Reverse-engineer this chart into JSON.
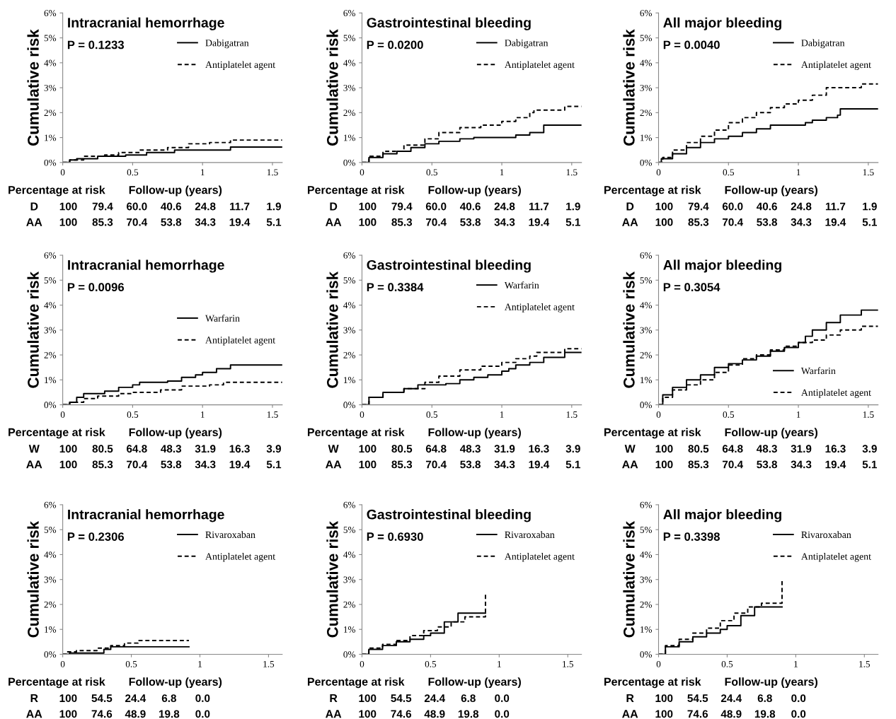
{
  "chart_data": [
    {
      "type": "step",
      "title": "Intracranial hemorrhage",
      "ylabel": "Cumulative risk",
      "xlim": [
        0,
        1.57
      ],
      "ylim": [
        0,
        6
      ],
      "xticks": [
        0,
        0.5,
        1,
        1.5
      ],
      "yticks": [
        {
          "value": 0,
          "label": "0%"
        },
        {
          "value": 1,
          "label": "1%"
        },
        {
          "value": 2,
          "label": "2%"
        },
        {
          "value": 3,
          "label": "3%"
        },
        {
          "value": 4,
          "label": "4%"
        },
        {
          "value": 5,
          "label": "5%"
        },
        {
          "value": 6,
          "label": "6%"
        }
      ],
      "legend": "top right",
      "grid": false,
      "series": [
        {
          "name": "Dabigatran",
          "color": "#000000",
          "line_style": "solid",
          "x": [
            0,
            0.05,
            0.1,
            0.25,
            0.45,
            0.6,
            0.8,
            1.2,
            1.57
          ],
          "values": [
            0,
            0.1,
            0.15,
            0.25,
            0.3,
            0.4,
            0.5,
            0.62,
            0.62
          ]
        },
        {
          "name": "Antiplatelet agent",
          "color": "#000000",
          "line_style": "dashed",
          "x": [
            0,
            0.05,
            0.15,
            0.3,
            0.4,
            0.55,
            0.75,
            0.9,
            1.05,
            1.2,
            1.57
          ],
          "values": [
            0,
            0.1,
            0.25,
            0.3,
            0.4,
            0.5,
            0.6,
            0.75,
            0.8,
            0.9,
            0.9
          ]
        }
      ],
      "annotations": [
        "P = 0.1233",
        "Percentage at risk",
        "Follow-up (years)",
        "D",
        "100",
        "79.4",
        "60.0",
        "40.6",
        "24.8",
        "11.7",
        "1.9",
        "AA",
        "100",
        "85.3",
        "70.4",
        "53.8",
        "34.3",
        "19.4",
        "5.1"
      ]
    },
    {
      "type": "step",
      "title": "Gastrointestinal bleeding",
      "ylabel": "Cumulative risk",
      "xlim": [
        0,
        1.57
      ],
      "ylim": [
        0,
        6
      ],
      "xticks": [
        0,
        0.5,
        1,
        1.5
      ],
      "yticks": [
        {
          "value": 0,
          "label": "0%"
        },
        {
          "value": 1,
          "label": "1%"
        },
        {
          "value": 2,
          "label": "2%"
        },
        {
          "value": 3,
          "label": "3%"
        },
        {
          "value": 4,
          "label": "4%"
        },
        {
          "value": 5,
          "label": "5%"
        },
        {
          "value": 6,
          "label": "6%"
        }
      ],
      "legend": "top right",
      "grid": false,
      "series": [
        {
          "name": "Dabigatran",
          "color": "#000000",
          "line_style": "solid",
          "x": [
            0,
            0.05,
            0.15,
            0.25,
            0.35,
            0.45,
            0.55,
            0.7,
            0.8,
            1.1,
            1.2,
            1.3,
            1.57
          ],
          "values": [
            0,
            0.2,
            0.35,
            0.45,
            0.6,
            0.75,
            0.85,
            0.95,
            1.0,
            1.1,
            1.2,
            1.5,
            1.5
          ]
        },
        {
          "name": "Antiplatelet agent",
          "color": "#000000",
          "line_style": "dashed",
          "x": [
            0,
            0.05,
            0.15,
            0.3,
            0.45,
            0.55,
            0.7,
            0.85,
            1.0,
            1.1,
            1.2,
            1.23,
            1.45,
            1.57
          ],
          "values": [
            0,
            0.25,
            0.45,
            0.7,
            0.95,
            1.2,
            1.4,
            1.5,
            1.65,
            1.8,
            2.0,
            2.1,
            2.25,
            2.25
          ]
        }
      ],
      "annotations": [
        "P = 0.0200",
        "Percentage at risk",
        "Follow-up (years)",
        "D",
        "100",
        "79.4",
        "60.0",
        "40.6",
        "24.8",
        "11.7",
        "1.9",
        "AA",
        "100",
        "85.3",
        "70.4",
        "53.8",
        "34.3",
        "19.4",
        "5.1"
      ]
    },
    {
      "type": "step",
      "title": "All major bleeding",
      "ylabel": "Cumulative risk",
      "xlim": [
        0,
        1.57
      ],
      "ylim": [
        0,
        6
      ],
      "xticks": [
        0,
        0.5,
        1,
        1.5
      ],
      "yticks": [
        {
          "value": 0,
          "label": "0%"
        },
        {
          "value": 1,
          "label": "1%"
        },
        {
          "value": 2,
          "label": "2%"
        },
        {
          "value": 3,
          "label": "3%"
        },
        {
          "value": 4,
          "label": "4%"
        },
        {
          "value": 5,
          "label": "5%"
        },
        {
          "value": 6,
          "label": "6%"
        }
      ],
      "legend": "top right",
      "grid": false,
      "series": [
        {
          "name": "Dabigatran",
          "color": "#000000",
          "line_style": "solid",
          "x": [
            0,
            0.02,
            0.1,
            0.2,
            0.3,
            0.4,
            0.5,
            0.6,
            0.7,
            0.8,
            1.05,
            1.1,
            1.2,
            1.28,
            1.3,
            1.57
          ],
          "values": [
            0,
            0.15,
            0.35,
            0.6,
            0.8,
            0.95,
            1.05,
            1.2,
            1.35,
            1.5,
            1.6,
            1.7,
            1.8,
            1.9,
            2.15,
            2.15
          ]
        },
        {
          "name": "Antiplatelet agent",
          "color": "#000000",
          "line_style": "dashed",
          "x": [
            0,
            0.03,
            0.1,
            0.2,
            0.3,
            0.4,
            0.5,
            0.6,
            0.7,
            0.8,
            0.9,
            1.0,
            1.1,
            1.2,
            1.45,
            1.57
          ],
          "values": [
            0,
            0.2,
            0.5,
            0.8,
            1.05,
            1.3,
            1.6,
            1.8,
            2.0,
            2.2,
            2.35,
            2.5,
            2.7,
            3.0,
            3.15,
            3.15
          ]
        }
      ],
      "annotations": [
        "P = 0.0040",
        "Percentage at risk",
        "Follow-up (years)",
        "D",
        "100",
        "79.4",
        "60.0",
        "40.6",
        "24.8",
        "11.7",
        "1.9",
        "AA",
        "100",
        "85.3",
        "70.4",
        "53.8",
        "34.3",
        "19.4",
        "5.1"
      ]
    },
    {
      "type": "step",
      "title": "Intracranial hemorrhage",
      "ylabel": "Cumulative risk",
      "xlim": [
        0,
        1.57
      ],
      "ylim": [
        0,
        6
      ],
      "xticks": [
        0,
        0.5,
        1,
        1.5
      ],
      "yticks": [
        {
          "value": 0,
          "label": "0%"
        },
        {
          "value": 1,
          "label": "1%"
        },
        {
          "value": 2,
          "label": "2%"
        },
        {
          "value": 3,
          "label": "3%"
        },
        {
          "value": 4,
          "label": "4%"
        },
        {
          "value": 5,
          "label": "5%"
        },
        {
          "value": 6,
          "label": "6%"
        }
      ],
      "legend": "right",
      "grid": false,
      "series": [
        {
          "name": "Warfarin",
          "color": "#000000",
          "line_style": "solid",
          "x": [
            0,
            0.05,
            0.1,
            0.15,
            0.3,
            0.4,
            0.5,
            0.55,
            0.75,
            0.85,
            0.95,
            1.0,
            1.1,
            1.2,
            1.57
          ],
          "values": [
            0,
            0.1,
            0.3,
            0.45,
            0.55,
            0.7,
            0.8,
            0.9,
            0.95,
            1.1,
            1.2,
            1.3,
            1.45,
            1.6,
            1.6
          ]
        },
        {
          "name": "Antiplatelet agent",
          "color": "#000000",
          "line_style": "dashed",
          "x": [
            0,
            0.05,
            0.15,
            0.25,
            0.4,
            0.5,
            0.7,
            0.85,
            1.05,
            1.15,
            1.57
          ],
          "values": [
            0,
            0.1,
            0.25,
            0.35,
            0.45,
            0.5,
            0.6,
            0.75,
            0.8,
            0.9,
            0.9
          ]
        }
      ],
      "annotations": [
        "P = 0.0096",
        "Percentage at risk",
        "Follow-up (years)",
        "W",
        "100",
        "80.5",
        "64.8",
        "48.3",
        "31.9",
        "16.3",
        "3.9",
        "AA",
        "100",
        "85.3",
        "70.4",
        "53.8",
        "34.3",
        "19.4",
        "5.1"
      ]
    },
    {
      "type": "step",
      "title": "Gastrointestinal bleeding",
      "ylabel": "Cumulative risk",
      "xlim": [
        0,
        1.57
      ],
      "ylim": [
        0,
        6
      ],
      "xticks": [
        0,
        0.5,
        1,
        1.5
      ],
      "yticks": [
        {
          "value": 0,
          "label": "0%"
        },
        {
          "value": 1,
          "label": "1%"
        },
        {
          "value": 2,
          "label": "2%"
        },
        {
          "value": 3,
          "label": "3%"
        },
        {
          "value": 4,
          "label": "4%"
        },
        {
          "value": 5,
          "label": "5%"
        },
        {
          "value": 6,
          "label": "6%"
        }
      ],
      "legend": "top right",
      "grid": false,
      "series": [
        {
          "name": "Warfarin",
          "color": "#000000",
          "line_style": "solid",
          "x": [
            0,
            0.05,
            0.15,
            0.3,
            0.4,
            0.6,
            0.7,
            0.8,
            0.9,
            1.0,
            1.05,
            1.1,
            1.2,
            1.3,
            1.45,
            1.57
          ],
          "values": [
            0,
            0.3,
            0.5,
            0.65,
            0.8,
            0.85,
            1.0,
            1.1,
            1.2,
            1.35,
            1.45,
            1.6,
            1.7,
            1.9,
            2.1,
            2.1
          ]
        },
        {
          "name": "Antiplatelet agent",
          "color": "#000000",
          "line_style": "dashed",
          "x": [
            0,
            0.05,
            0.15,
            0.3,
            0.45,
            0.55,
            0.7,
            0.85,
            1.0,
            1.1,
            1.2,
            1.25,
            1.45,
            1.57
          ],
          "values": [
            0,
            0.3,
            0.5,
            0.65,
            0.9,
            1.15,
            1.4,
            1.55,
            1.7,
            1.85,
            1.95,
            2.1,
            2.25,
            2.25
          ]
        }
      ],
      "annotations": [
        "P = 0.3384",
        "Percentage at risk",
        "Follow-up (years)",
        "W",
        "100",
        "80.5",
        "64.8",
        "48.3",
        "31.9",
        "16.3",
        "3.9",
        "AA",
        "100",
        "85.3",
        "70.4",
        "53.8",
        "34.3",
        "19.4",
        "5.1"
      ]
    },
    {
      "type": "step",
      "title": "All major bleeding",
      "ylabel": "Cumulative risk",
      "xlim": [
        0,
        1.57
      ],
      "ylim": [
        0,
        6
      ],
      "xticks": [
        0,
        0.5,
        1,
        1.5
      ],
      "yticks": [
        {
          "value": 0,
          "label": "0%"
        },
        {
          "value": 1,
          "label": "1%"
        },
        {
          "value": 2,
          "label": "2%"
        },
        {
          "value": 3,
          "label": "3%"
        },
        {
          "value": 4,
          "label": "4%"
        },
        {
          "value": 5,
          "label": "5%"
        },
        {
          "value": 6,
          "label": "6%"
        }
      ],
      "legend": "bottom right",
      "grid": false,
      "series": [
        {
          "name": "Warfarin",
          "color": "#000000",
          "line_style": "solid",
          "x": [
            0,
            0.03,
            0.1,
            0.2,
            0.3,
            0.4,
            0.5,
            0.6,
            0.7,
            0.8,
            0.9,
            1.0,
            1.05,
            1.1,
            1.2,
            1.3,
            1.45,
            1.57
          ],
          "values": [
            0,
            0.4,
            0.7,
            1.0,
            1.2,
            1.5,
            1.65,
            1.8,
            1.95,
            2.15,
            2.3,
            2.5,
            2.75,
            3.0,
            3.3,
            3.6,
            3.8,
            3.8
          ]
        },
        {
          "name": "Antiplatelet agent",
          "color": "#000000",
          "line_style": "dashed",
          "x": [
            0,
            0.03,
            0.1,
            0.2,
            0.3,
            0.4,
            0.5,
            0.6,
            0.7,
            0.8,
            0.9,
            1.0,
            1.1,
            1.2,
            1.3,
            1.45,
            1.57
          ],
          "values": [
            0,
            0.3,
            0.6,
            0.8,
            1.0,
            1.3,
            1.6,
            1.85,
            2.0,
            2.2,
            2.35,
            2.5,
            2.6,
            2.8,
            3.0,
            3.15,
            3.15
          ]
        }
      ],
      "annotations": [
        "P = 0.3054",
        "Percentage at risk",
        "Follow-up (years)",
        "W",
        "100",
        "80.5",
        "64.8",
        "48.3",
        "31.9",
        "16.3",
        "3.9",
        "AA",
        "100",
        "85.3",
        "70.4",
        "53.8",
        "34.3",
        "19.4",
        "5.1"
      ]
    },
    {
      "type": "step",
      "title": "Intracranial hemorrhage",
      "ylabel": "Cumulative risk",
      "xlim": [
        0,
        1.6
      ],
      "ylim": [
        0,
        6
      ],
      "xticks": [
        0,
        0.5,
        1,
        1.5
      ],
      "yticks": [
        {
          "value": 0,
          "label": "0%"
        },
        {
          "value": 1,
          "label": "1%"
        },
        {
          "value": 2,
          "label": "2%"
        },
        {
          "value": 3,
          "label": "3%"
        },
        {
          "value": 4,
          "label": "4%"
        },
        {
          "value": 5,
          "label": "5%"
        },
        {
          "value": 6,
          "label": "6%"
        }
      ],
      "legend": "top right",
      "grid": false,
      "series": [
        {
          "name": "Rivaroxaban",
          "color": "#000000",
          "line_style": "solid",
          "x": [
            0,
            0.05,
            0.3,
            0.35,
            0.92
          ],
          "values": [
            0,
            0.05,
            0.2,
            0.3,
            0.3
          ]
        },
        {
          "name": "Antiplatelet agent",
          "color": "#000000",
          "line_style": "dashed",
          "x": [
            0,
            0.03,
            0.1,
            0.25,
            0.35,
            0.45,
            0.55,
            0.92
          ],
          "values": [
            0,
            0.1,
            0.15,
            0.25,
            0.35,
            0.45,
            0.55,
            0.55
          ]
        }
      ],
      "annotations": [
        "P = 0.2306",
        "Percentage at risk",
        "Follow-up (years)",
        "R",
        "100",
        "54.5",
        "24.4",
        "6.8",
        "0.0",
        "AA",
        "100",
        "74.6",
        "48.9",
        "19.8",
        "0.0"
      ]
    },
    {
      "type": "step",
      "title": "Gastrointestinal bleeding",
      "ylabel": "Cumulative risk",
      "xlim": [
        0,
        1.6
      ],
      "ylim": [
        0,
        6
      ],
      "xticks": [
        0,
        0.5,
        1,
        1.5
      ],
      "yticks": [
        {
          "value": 0,
          "label": "0%"
        },
        {
          "value": 1,
          "label": "1%"
        },
        {
          "value": 2,
          "label": "2%"
        },
        {
          "value": 3,
          "label": "3%"
        },
        {
          "value": 4,
          "label": "4%"
        },
        {
          "value": 5,
          "label": "5%"
        },
        {
          "value": 6,
          "label": "6%"
        }
      ],
      "legend": "top right",
      "grid": false,
      "series": [
        {
          "name": "Rivaroxaban",
          "color": "#000000",
          "line_style": "solid",
          "x": [
            0,
            0.05,
            0.15,
            0.25,
            0.35,
            0.45,
            0.5,
            0.6,
            0.7,
            0.9
          ],
          "values": [
            0,
            0.2,
            0.35,
            0.5,
            0.6,
            0.75,
            0.85,
            1.3,
            1.65,
            1.65
          ]
        },
        {
          "name": "Antiplatelet agent",
          "color": "#000000",
          "line_style": "dashed",
          "x": [
            0,
            0.05,
            0.15,
            0.25,
            0.35,
            0.45,
            0.55,
            0.65,
            0.75,
            0.9
          ],
          "values": [
            0,
            0.25,
            0.4,
            0.55,
            0.75,
            0.95,
            1.1,
            1.3,
            1.5,
            2.45
          ]
        }
      ],
      "annotations": [
        "P = 0.6930",
        "Percentage at risk",
        "Follow-up (years)",
        "R",
        "100",
        "54.5",
        "24.4",
        "6.8",
        "0.0",
        "AA",
        "100",
        "74.6",
        "48.9",
        "19.8",
        "0.0"
      ]
    },
    {
      "type": "step",
      "title": "All major bleeding",
      "ylabel": "Cumulative risk",
      "xlim": [
        0,
        1.6
      ],
      "ylim": [
        0,
        6
      ],
      "xticks": [
        0,
        0.5,
        1,
        1.5
      ],
      "yticks": [
        {
          "value": 0,
          "label": "0%"
        },
        {
          "value": 1,
          "label": "1%"
        },
        {
          "value": 2,
          "label": "2%"
        },
        {
          "value": 3,
          "label": "3%"
        },
        {
          "value": 4,
          "label": "4%"
        },
        {
          "value": 5,
          "label": "5%"
        },
        {
          "value": 6,
          "label": "6%"
        }
      ],
      "legend": "top right",
      "grid": false,
      "series": [
        {
          "name": "Rivaroxaban",
          "color": "#000000",
          "line_style": "solid",
          "x": [
            0,
            0.05,
            0.15,
            0.25,
            0.35,
            0.45,
            0.5,
            0.6,
            0.7,
            0.9
          ],
          "values": [
            0,
            0.3,
            0.5,
            0.7,
            0.85,
            1.0,
            1.15,
            1.55,
            1.9,
            1.9
          ]
        },
        {
          "name": "Antiplatelet agent",
          "color": "#000000",
          "line_style": "dashed",
          "x": [
            0,
            0.05,
            0.15,
            0.25,
            0.35,
            0.45,
            0.55,
            0.65,
            0.75,
            0.9
          ],
          "values": [
            0,
            0.35,
            0.6,
            0.85,
            1.05,
            1.35,
            1.65,
            1.9,
            2.05,
            3.0
          ]
        }
      ],
      "annotations": [
        "P = 0.3398",
        "Percentage at risk",
        "Follow-up (years)",
        "R",
        "100",
        "54.5",
        "24.4",
        "6.8",
        "0.0",
        "AA",
        "100",
        "74.6",
        "48.9",
        "19.8",
        "0.0"
      ]
    }
  ]
}
